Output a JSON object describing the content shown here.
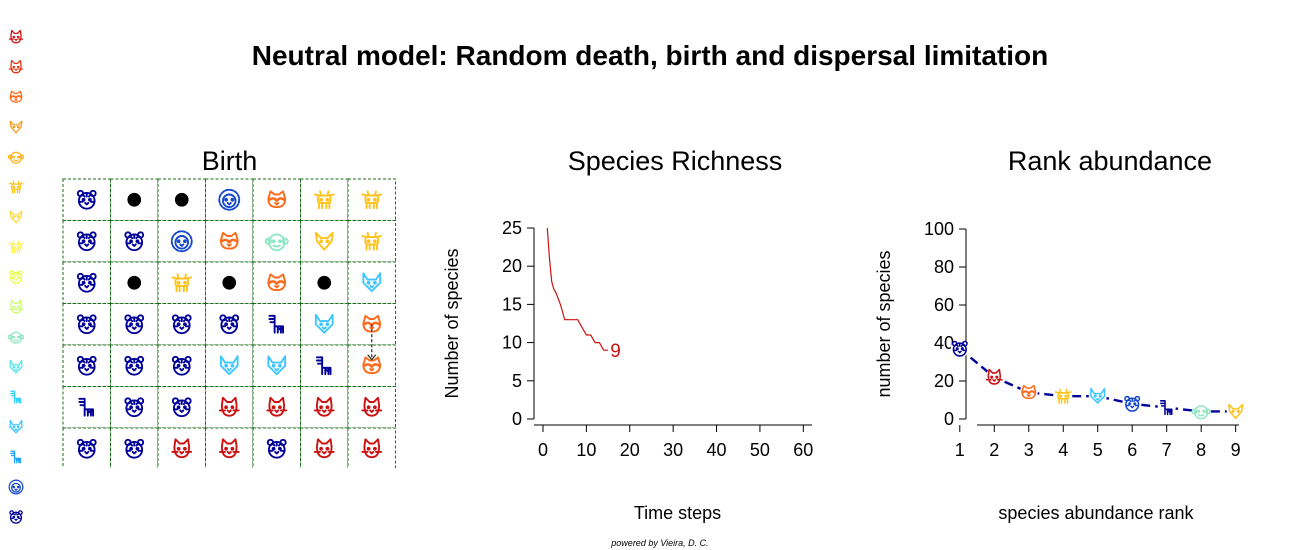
{
  "title": "Neutral model:  Random death, birth and dispersal limitation",
  "credit": "powered by Vieira, D. C.",
  "colors": {
    "dispersal_border": "#1a6b1a",
    "richness_line": "#cc1111",
    "rank_line": "#00009a",
    "dead": "#000000",
    "species": [
      "#000099",
      "#1447cc",
      "#1aa3ff",
      "#3fc6ff",
      "#2fd0ff",
      "#55e3f0",
      "#8fe6c4",
      "#c9ff66",
      "#fff04d",
      "#ffc21a",
      "#ff9a1a",
      "#ff6a1a",
      "#e23515",
      "#cc1010"
    ]
  },
  "species_legend": [
    {
      "icon": "cat-icon",
      "color": "#cc1010"
    },
    {
      "icon": "cat-icon",
      "color": "#e23515"
    },
    {
      "icon": "raccoon-icon",
      "color": "#ff6a1a"
    },
    {
      "icon": "fox-icon",
      "color": "#ff9a1a"
    },
    {
      "icon": "monkey-icon",
      "color": "#ffb21a"
    },
    {
      "icon": "cow-icon",
      "color": "#ffc21a"
    },
    {
      "icon": "fox-icon",
      "color": "#ffd833"
    },
    {
      "icon": "cow-icon",
      "color": "#fff04d"
    },
    {
      "icon": "tiger-icon",
      "color": "#e6ff4d"
    },
    {
      "icon": "cat-icon",
      "color": "#c9ff66"
    },
    {
      "icon": "monkey-icon",
      "color": "#8fe6c4"
    },
    {
      "icon": "wolf-icon",
      "color": "#55e3f0"
    },
    {
      "icon": "zebra-icon",
      "color": "#2fd0ff"
    },
    {
      "icon": "wolf-icon",
      "color": "#3fc6ff"
    },
    {
      "icon": "zebra-icon",
      "color": "#1aa3ff"
    },
    {
      "icon": "lion-icon",
      "color": "#1447cc"
    },
    {
      "icon": "tiger-icon",
      "color": "#000099"
    }
  ],
  "grid_panel": {
    "title": "Birth",
    "rows": 7,
    "cols": 7,
    "cells": [
      [
        {
          "icon": "tiger-icon",
          "color": "#000099"
        },
        {
          "icon": "dead",
          "color": "#000000"
        },
        {
          "icon": "dead",
          "color": "#000000"
        },
        {
          "icon": "lion-icon",
          "color": "#1447cc"
        },
        {
          "icon": "raccoon-icon",
          "color": "#ff6a1a"
        },
        {
          "icon": "cow-icon",
          "color": "#ffc21a"
        },
        {
          "icon": "cow-icon",
          "color": "#ffc21a"
        }
      ],
      [
        {
          "icon": "tiger-icon",
          "color": "#000099"
        },
        {
          "icon": "tiger-icon",
          "color": "#000099"
        },
        {
          "icon": "lion-icon",
          "color": "#1447cc"
        },
        {
          "icon": "raccoon-icon",
          "color": "#ff6a1a"
        },
        {
          "icon": "monkey-icon",
          "color": "#8fe6c4"
        },
        {
          "icon": "fox-icon",
          "color": "#ffc21a"
        },
        {
          "icon": "cow-icon",
          "color": "#ffc21a"
        }
      ],
      [
        {
          "icon": "tiger-icon",
          "color": "#000099"
        },
        {
          "icon": "dead",
          "color": "#000000"
        },
        {
          "icon": "cow-icon",
          "color": "#ffc21a"
        },
        {
          "icon": "dead",
          "color": "#000000"
        },
        {
          "icon": "raccoon-icon",
          "color": "#ff6a1a"
        },
        {
          "icon": "dead",
          "color": "#000000"
        },
        {
          "icon": "wolf-icon",
          "color": "#3fc6ff"
        }
      ],
      [
        {
          "icon": "tiger-icon",
          "color": "#000099"
        },
        {
          "icon": "tiger-icon",
          "color": "#000099"
        },
        {
          "icon": "tiger-icon",
          "color": "#000099"
        },
        {
          "icon": "tiger-icon",
          "color": "#000099"
        },
        {
          "icon": "zebra-icon",
          "color": "#000099"
        },
        {
          "icon": "wolf-icon",
          "color": "#3fc6ff"
        },
        {
          "icon": "raccoon-icon",
          "color": "#ff6a1a"
        }
      ],
      [
        {
          "icon": "tiger-icon",
          "color": "#000099"
        },
        {
          "icon": "tiger-icon",
          "color": "#000099"
        },
        {
          "icon": "tiger-icon",
          "color": "#000099"
        },
        {
          "icon": "wolf-icon",
          "color": "#3fc6ff"
        },
        {
          "icon": "wolf-icon",
          "color": "#3fc6ff"
        },
        {
          "icon": "zebra-icon",
          "color": "#000099"
        },
        {
          "icon": "raccoon-icon",
          "color": "#ff6a1a"
        }
      ],
      [
        {
          "icon": "zebra-icon",
          "color": "#000099"
        },
        {
          "icon": "tiger-icon",
          "color": "#000099"
        },
        {
          "icon": "tiger-icon",
          "color": "#000099"
        },
        {
          "icon": "cat-icon",
          "color": "#cc1010"
        },
        {
          "icon": "cat-icon",
          "color": "#cc1010"
        },
        {
          "icon": "cat-icon",
          "color": "#cc1010"
        },
        {
          "icon": "cat-icon",
          "color": "#cc1010"
        }
      ],
      [
        {
          "icon": "tiger-icon",
          "color": "#000099"
        },
        {
          "icon": "tiger-icon",
          "color": "#000099"
        },
        {
          "icon": "cat-icon",
          "color": "#cc1010"
        },
        {
          "icon": "cat-icon",
          "color": "#cc1010"
        },
        {
          "icon": "tiger-icon",
          "color": "#000099"
        },
        {
          "icon": "cat-icon",
          "color": "#cc1010"
        },
        {
          "icon": "cat-icon",
          "color": "#cc1010"
        }
      ]
    ],
    "dispersal_arrow": {
      "from": [
        3,
        6
      ],
      "to": [
        4,
        6
      ]
    }
  },
  "chart_data": [
    {
      "type": "line",
      "title": "Species Richness",
      "xlabel": "Time steps",
      "ylabel": "Number of species",
      "xlim": [
        0,
        62
      ],
      "ylim": [
        0,
        25
      ],
      "xticks": [
        0,
        10,
        20,
        30,
        40,
        50,
        60
      ],
      "yticks": [
        0,
        5,
        10,
        15,
        20,
        25
      ],
      "grid": false,
      "series": [
        {
          "x": [
            1,
            1.5,
            2,
            2.5,
            3,
            4,
            5,
            6,
            7,
            8,
            9,
            10,
            11,
            12,
            13,
            14,
            15
          ],
          "y": [
            25,
            21,
            18,
            17,
            16.5,
            15,
            13,
            13,
            13,
            13,
            12,
            11,
            11,
            10,
            10,
            9,
            9
          ]
        }
      ],
      "end_label": {
        "x": 15.5,
        "y": 9,
        "text": "9"
      }
    },
    {
      "type": "line",
      "title": "Rank abundance",
      "xlabel": "species abundance rank",
      "ylabel": "number of species",
      "xlim": [
        0.6,
        9.3
      ],
      "ylim": [
        0,
        100
      ],
      "xticks": [
        1,
        2,
        3,
        4,
        5,
        6,
        7,
        8,
        9
      ],
      "yticks": [
        0,
        20,
        40,
        60,
        80,
        100
      ],
      "grid": false,
      "categories": [
        "1",
        "2",
        "3",
        "4",
        "5",
        "6",
        "7",
        "8",
        "9"
      ],
      "series": [
        {
          "values": [
            37,
            22,
            14,
            12,
            12,
            8,
            6,
            4,
            4
          ],
          "markers": [
            "tiger-icon",
            "cat-icon",
            "raccoon-icon",
            "cow-icon",
            "wolf-icon",
            "tiger-icon",
            "zebra-icon",
            "monkey-icon",
            "fox-icon"
          ],
          "marker_colors": [
            "#000099",
            "#cc1010",
            "#ff6a1a",
            "#ffc21a",
            "#3fc6ff",
            "#1447cc",
            "#000099",
            "#8fe6c4",
            "#ffc21a"
          ]
        }
      ]
    }
  ]
}
